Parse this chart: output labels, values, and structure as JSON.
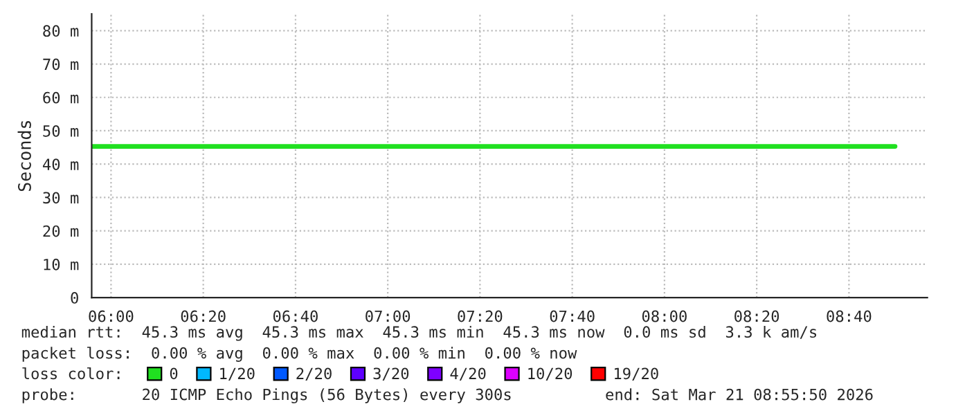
{
  "chart_data": {
    "type": "line",
    "ylabel": "Seconds",
    "legend_title": "loss color:",
    "x": [
      5.933,
      8.833
    ],
    "series": [
      {
        "name": "0",
        "color": "#20e020",
        "values": [
          45.3,
          45.3
        ]
      },
      {
        "name": "1/20",
        "color": "#00b8ff",
        "values": [
          null,
          null
        ]
      },
      {
        "name": "2/20",
        "color": "#0059ff",
        "values": [
          null,
          null
        ]
      },
      {
        "name": "3/20",
        "color": "#5e00ff",
        "values": [
          null,
          null
        ]
      },
      {
        "name": "4/20",
        "color": "#7e00ff",
        "values": [
          null,
          null
        ]
      },
      {
        "name": "10/20",
        "color": "#dd00ff",
        "values": [
          null,
          null
        ]
      },
      {
        "name": "19/20",
        "color": "#ff0000",
        "values": [
          null,
          null
        ]
      }
    ],
    "xlim": [
      5.93,
      8.95
    ],
    "xticks": [
      {
        "value": 6.0,
        "label": "06:00"
      },
      {
        "value": 6.3333,
        "label": "06:20"
      },
      {
        "value": 6.6667,
        "label": "06:40"
      },
      {
        "value": 7.0,
        "label": "07:00"
      },
      {
        "value": 7.3333,
        "label": "07:20"
      },
      {
        "value": 7.6667,
        "label": "07:40"
      },
      {
        "value": 8.0,
        "label": "08:00"
      },
      {
        "value": 8.3333,
        "label": "08:20"
      },
      {
        "value": 8.6667,
        "label": "08:40"
      }
    ],
    "ylim": [
      0,
      85
    ],
    "yticks": [
      0,
      {
        "value": 10,
        "label": "10 m"
      },
      {
        "value": 20,
        "label": "20 m"
      },
      {
        "value": 30,
        "label": "30 m"
      },
      {
        "value": 40,
        "label": "40 m"
      },
      {
        "value": 50,
        "label": "50 m"
      },
      {
        "value": 60,
        "label": "60 m"
      },
      {
        "value": 70,
        "label": "70 m"
      },
      {
        "value": 80,
        "label": "80 m"
      }
    ],
    "grid": true,
    "legend": "bottom",
    "marker": "none",
    "line_style": "solid",
    "annotations": [
      "median rtt:  45.3 ms avg  45.3 ms max  45.3 ms min  45.3 ms now  0.0 ms sd  3.3 k am/s",
      "packet loss:  0.00 % avg  0.00 % max  0.00 % min  0.00 % now",
      "probe:       20 ICMP Echo Pings (56 Bytes) every 300s",
      "end: Sat Mar 21 08:55:50 2026"
    ]
  }
}
